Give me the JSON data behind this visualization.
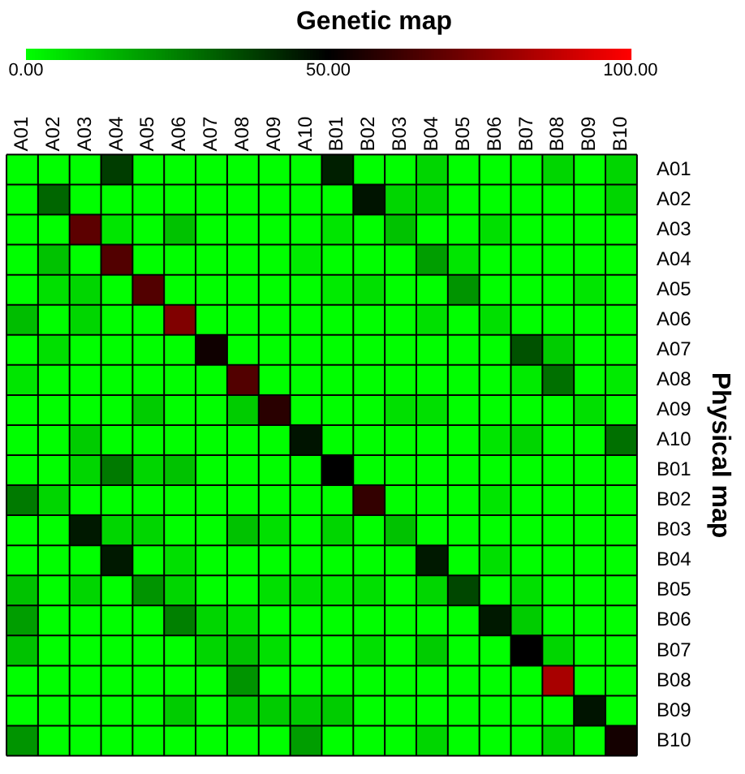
{
  "chart_data": {
    "type": "heatmap",
    "title": "Genetic map",
    "ylabel": "Physical map",
    "categories": [
      "A01",
      "A02",
      "A03",
      "A04",
      "A05",
      "A06",
      "A07",
      "A08",
      "A09",
      "A10",
      "B01",
      "B02",
      "B03",
      "B04",
      "B05",
      "B06",
      "B07",
      "B08",
      "B09",
      "B10"
    ],
    "y_categories": [
      "A01",
      "A02",
      "A03",
      "A04",
      "A05",
      "A06",
      "A07",
      "A08",
      "A09",
      "A10",
      "B01",
      "B02",
      "B03",
      "B04",
      "B05",
      "B06",
      "B07",
      "B08",
      "B09",
      "B10"
    ],
    "cells": [
      [
        0,
        0,
        0,
        38,
        0,
        0,
        0,
        0,
        0,
        0,
        44,
        0,
        0,
        8,
        0,
        0,
        0,
        8,
        0,
        8
      ],
      [
        0,
        30,
        0,
        0,
        0,
        0,
        0,
        0,
        0,
        0,
        0,
        46,
        8,
        8,
        0,
        0,
        0,
        0,
        0,
        8
      ],
      [
        0,
        0,
        68,
        5,
        0,
        12,
        0,
        0,
        0,
        0,
        5,
        0,
        12,
        0,
        0,
        6,
        0,
        0,
        0,
        0
      ],
      [
        0,
        12,
        0,
        66,
        0,
        0,
        0,
        0,
        0,
        4,
        0,
        0,
        0,
        19,
        5,
        0,
        0,
        0,
        0,
        0
      ],
      [
        0,
        6,
        8,
        0,
        66,
        0,
        0,
        0,
        0,
        0,
        4,
        6,
        0,
        0,
        21,
        0,
        0,
        0,
        5,
        0
      ],
      [
        13,
        0,
        8,
        0,
        0,
        75,
        0,
        0,
        0,
        0,
        0,
        0,
        0,
        6,
        0,
        6,
        0,
        0,
        0,
        0
      ],
      [
        0,
        6,
        0,
        0,
        0,
        0,
        53,
        0,
        0,
        0,
        0,
        0,
        0,
        0,
        0,
        0,
        34,
        10,
        0,
        0
      ],
      [
        5,
        0,
        0,
        0,
        0,
        0,
        0,
        66,
        0,
        0,
        0,
        0,
        0,
        0,
        0,
        0,
        4,
        28,
        0,
        4
      ],
      [
        0,
        0,
        0,
        0,
        10,
        0,
        0,
        10,
        58,
        0,
        0,
        0,
        6,
        6,
        0,
        0,
        0,
        0,
        6,
        0
      ],
      [
        0,
        0,
        10,
        0,
        0,
        0,
        0,
        0,
        0,
        46,
        0,
        0,
        0,
        0,
        0,
        5,
        8,
        0,
        0,
        28
      ],
      [
        0,
        0,
        8,
        26,
        8,
        12,
        0,
        0,
        0,
        0,
        50,
        0,
        0,
        0,
        0,
        0,
        0,
        0,
        0,
        0
      ],
      [
        26,
        8,
        0,
        0,
        0,
        0,
        0,
        0,
        0,
        0,
        0,
        60,
        0,
        0,
        0,
        5,
        0,
        0,
        0,
        0
      ],
      [
        0,
        0,
        45,
        8,
        8,
        0,
        0,
        12,
        6,
        0,
        8,
        0,
        12,
        0,
        0,
        0,
        0,
        0,
        0,
        0
      ],
      [
        0,
        0,
        0,
        45,
        0,
        6,
        0,
        0,
        0,
        0,
        0,
        0,
        0,
        45,
        0,
        6,
        0,
        0,
        0,
        0
      ],
      [
        12,
        0,
        8,
        0,
        21,
        8,
        0,
        0,
        6,
        6,
        4,
        6,
        0,
        8,
        36,
        0,
        6,
        0,
        0,
        0
      ],
      [
        19,
        0,
        0,
        0,
        0,
        25,
        8,
        6,
        0,
        0,
        0,
        0,
        0,
        0,
        0,
        45,
        10,
        0,
        0,
        0
      ],
      [
        12,
        0,
        0,
        0,
        0,
        0,
        8,
        12,
        6,
        0,
        0,
        6,
        0,
        10,
        0,
        0,
        50,
        8,
        0,
        0
      ],
      [
        0,
        0,
        0,
        0,
        0,
        0,
        0,
        21,
        0,
        0,
        0,
        0,
        0,
        0,
        0,
        0,
        0,
        83,
        0,
        0
      ],
      [
        0,
        0,
        0,
        0,
        0,
        10,
        0,
        10,
        10,
        10,
        10,
        0,
        0,
        0,
        0,
        0,
        0,
        0,
        46,
        0
      ],
      [
        21,
        0,
        0,
        0,
        0,
        0,
        0,
        0,
        0,
        19,
        0,
        0,
        0,
        8,
        0,
        0,
        0,
        8,
        0,
        54
      ]
    ],
    "clim": [
      0,
      100
    ],
    "cticks": [
      {
        "value": 0,
        "label": "0.00"
      },
      {
        "value": 50,
        "label": "50.00"
      },
      {
        "value": 100,
        "label": "100.00"
      }
    ]
  }
}
